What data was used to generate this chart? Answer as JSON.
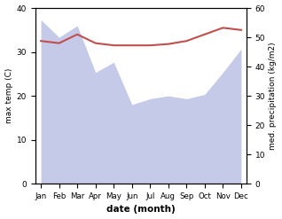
{
  "months": [
    "Jan",
    "Feb",
    "Mar",
    "Apr",
    "May",
    "Jun",
    "Jul",
    "Aug",
    "Sep",
    "Oct",
    "Nov",
    "Dec"
  ],
  "month_indices": [
    0,
    1,
    2,
    3,
    4,
    5,
    6,
    7,
    8,
    9,
    10,
    11
  ],
  "max_temp": [
    32.5,
    32.0,
    34.0,
    32.0,
    31.5,
    31.5,
    31.5,
    31.8,
    32.5,
    34.0,
    35.5,
    35.0
  ],
  "precipitation": [
    56.0,
    50.0,
    54.0,
    38.0,
    41.5,
    27.0,
    29.0,
    30.0,
    29.0,
    30.5,
    38.0,
    46.0
  ],
  "temp_color": "#c0504d",
  "precip_fill_color": "#c5cae9",
  "xlabel": "date (month)",
  "ylabel_left": "max temp (C)",
  "ylabel_right": "med. precipitation (kg/m2)",
  "ylim_left": [
    0,
    40
  ],
  "ylim_right": [
    0,
    60
  ],
  "yticks_left": [
    0,
    10,
    20,
    30,
    40
  ],
  "yticks_right": [
    0,
    10,
    20,
    30,
    40,
    50,
    60
  ],
  "figsize": [
    3.18,
    2.47
  ],
  "dpi": 100
}
